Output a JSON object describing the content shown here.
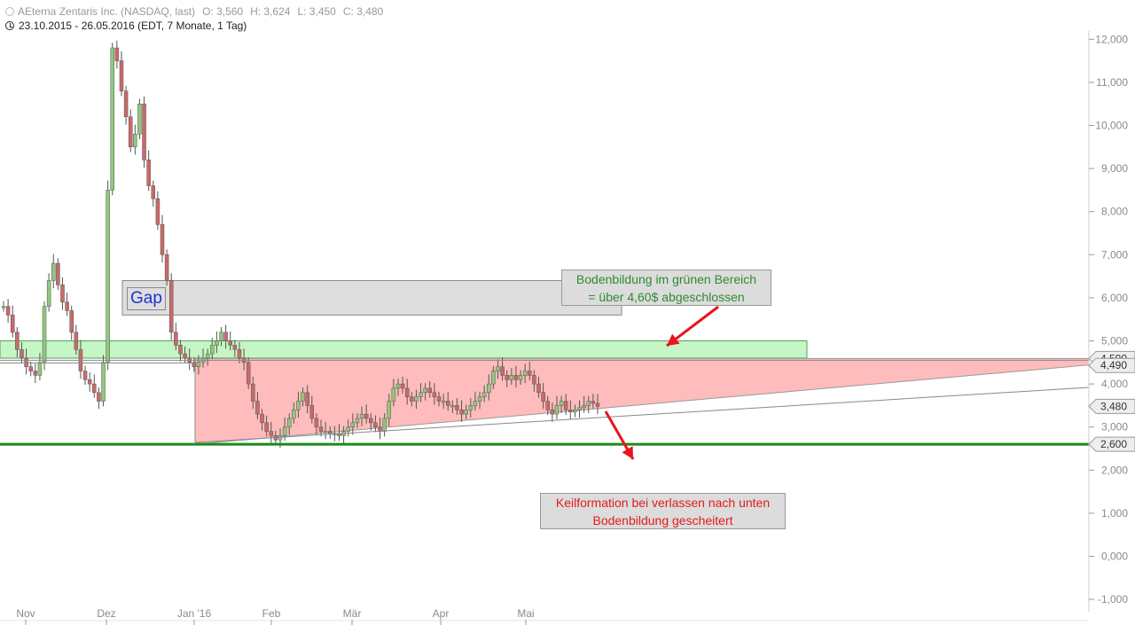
{
  "header": {
    "instrument": "AEterna Zentaris Inc. (NASDAQ, last)",
    "open": "O: 3,560",
    "high": "H: 3,624",
    "low": "L: 3,450",
    "close": "C: 3,480",
    "range": "23.10.2015 - 26.05.2016 (EDT, 7 Monate, 1 Tag)"
  },
  "annotations": {
    "gap": "Gap",
    "bottom_line1": "Bodenbildung im grünen Bereich",
    "bottom_line2": "= über 4,60$ abgeschlossen",
    "wedge_line1": "Keilformation bei verlassen nach unten",
    "wedge_line2": "Bodenbildung gescheitert"
  },
  "colors": {
    "up_candle": "#8fc97a",
    "down_candle": "#c96a6a",
    "green_zone": "#c6f5c6",
    "red_zone": "#ffbcbc",
    "support_line": "#1a8a1a",
    "arrow": "#e8141e",
    "gap_text": "#1a33d6"
  },
  "chart_data": {
    "type": "candlestick",
    "y_axis": {
      "side": "right",
      "ylim": [
        -1.0,
        12.4
      ],
      "ticks": [
        "12,000",
        "11,000",
        "10,000",
        "9,000",
        "8,000",
        "7,000",
        "6,000",
        "5,000",
        "4,000",
        "3,000",
        "2,000",
        "1,000",
        "0,000",
        "-1,000"
      ]
    },
    "x_axis": {
      "ticks": [
        "Nov",
        "Dez",
        "Jan '16",
        "Feb",
        "Mär",
        "Apr",
        "Mai"
      ]
    },
    "price_labels": [
      "4,490",
      "3,480",
      "2,600"
    ],
    "partly_hidden_label": "4,590",
    "levels": {
      "support": 2.6,
      "green_zone": [
        4.6,
        5.0
      ],
      "gap_zone": [
        5.6,
        6.4
      ],
      "resistance": 4.59
    },
    "close_series": [
      5.8,
      5.6,
      5.2,
      4.8,
      4.6,
      4.4,
      4.3,
      4.2,
      4.5,
      5.8,
      6.4,
      6.8,
      6.3,
      5.9,
      5.7,
      5.2,
      4.8,
      4.3,
      4.1,
      4.0,
      3.8,
      3.6,
      4.5,
      8.5,
      11.8,
      11.5,
      10.8,
      10.2,
      9.5,
      9.8,
      10.5,
      9.2,
      8.6,
      8.3,
      7.7,
      7.0,
      6.4,
      5.2,
      4.9,
      4.7,
      4.6,
      4.5,
      4.4,
      4.5,
      4.6,
      4.7,
      4.9,
      5.0,
      5.2,
      5.0,
      4.9,
      4.8,
      4.6,
      4.5,
      4.0,
      3.6,
      3.3,
      3.1,
      2.9,
      2.8,
      2.7,
      2.8,
      3.0,
      3.2,
      3.4,
      3.6,
      3.8,
      3.5,
      3.2,
      3.0,
      2.9,
      2.9,
      2.85,
      2.85,
      2.8,
      2.9,
      3.0,
      3.1,
      3.2,
      3.3,
      3.2,
      3.1,
      3.0,
      2.9,
      3.2,
      3.6,
      3.9,
      4.0,
      3.9,
      3.7,
      3.6,
      3.7,
      3.8,
      3.9,
      3.8,
      3.7,
      3.6,
      3.6,
      3.5,
      3.5,
      3.4,
      3.3,
      3.4,
      3.5,
      3.6,
      3.7,
      3.8,
      4.0,
      4.3,
      4.4,
      4.2,
      4.1,
      4.2,
      4.1,
      4.2,
      4.3,
      4.2,
      4.0,
      3.8,
      3.6,
      3.4,
      3.3,
      3.5,
      3.6,
      3.4,
      3.35,
      3.4,
      3.45,
      3.5,
      3.6,
      3.55,
      3.48
    ]
  }
}
